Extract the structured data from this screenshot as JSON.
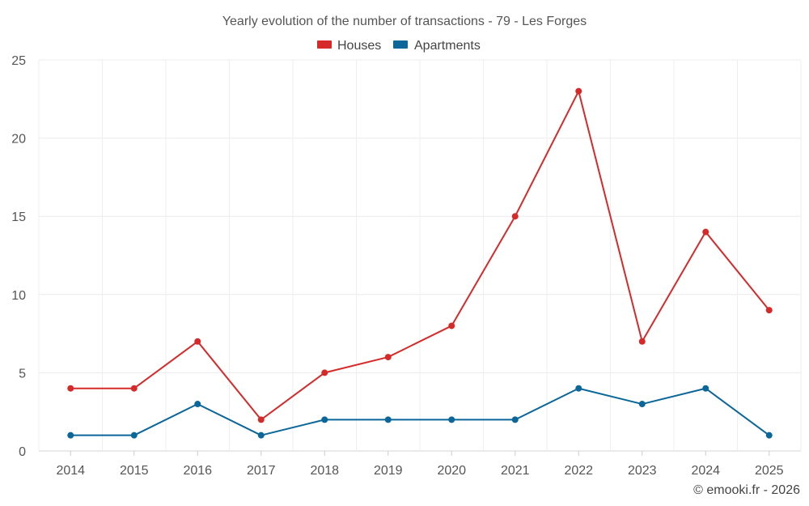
{
  "chart_data": {
    "type": "line",
    "title": "Yearly evolution of the number of transactions - 79 - Les Forges",
    "categories": [
      "2014",
      "2015",
      "2016",
      "2017",
      "2018",
      "2019",
      "2020",
      "2021",
      "2022",
      "2023",
      "2024",
      "2025"
    ],
    "series": [
      {
        "name": "Houses",
        "color": "#d62a2a",
        "values": [
          4,
          4,
          7,
          2,
          5,
          6,
          8,
          15,
          23,
          7,
          14,
          9
        ]
      },
      {
        "name": "Apartments",
        "color": "#0b6699",
        "values": [
          1,
          1,
          3,
          1,
          2,
          2,
          2,
          2,
          4,
          3,
          4,
          1
        ]
      }
    ],
    "yticks": [
      0,
      5,
      10,
      15,
      20,
      25
    ],
    "ylim": [
      0,
      25
    ],
    "grid": true,
    "legend_position": "top-center"
  },
  "footer": {
    "credit": "© emooki.fr - 2026"
  }
}
